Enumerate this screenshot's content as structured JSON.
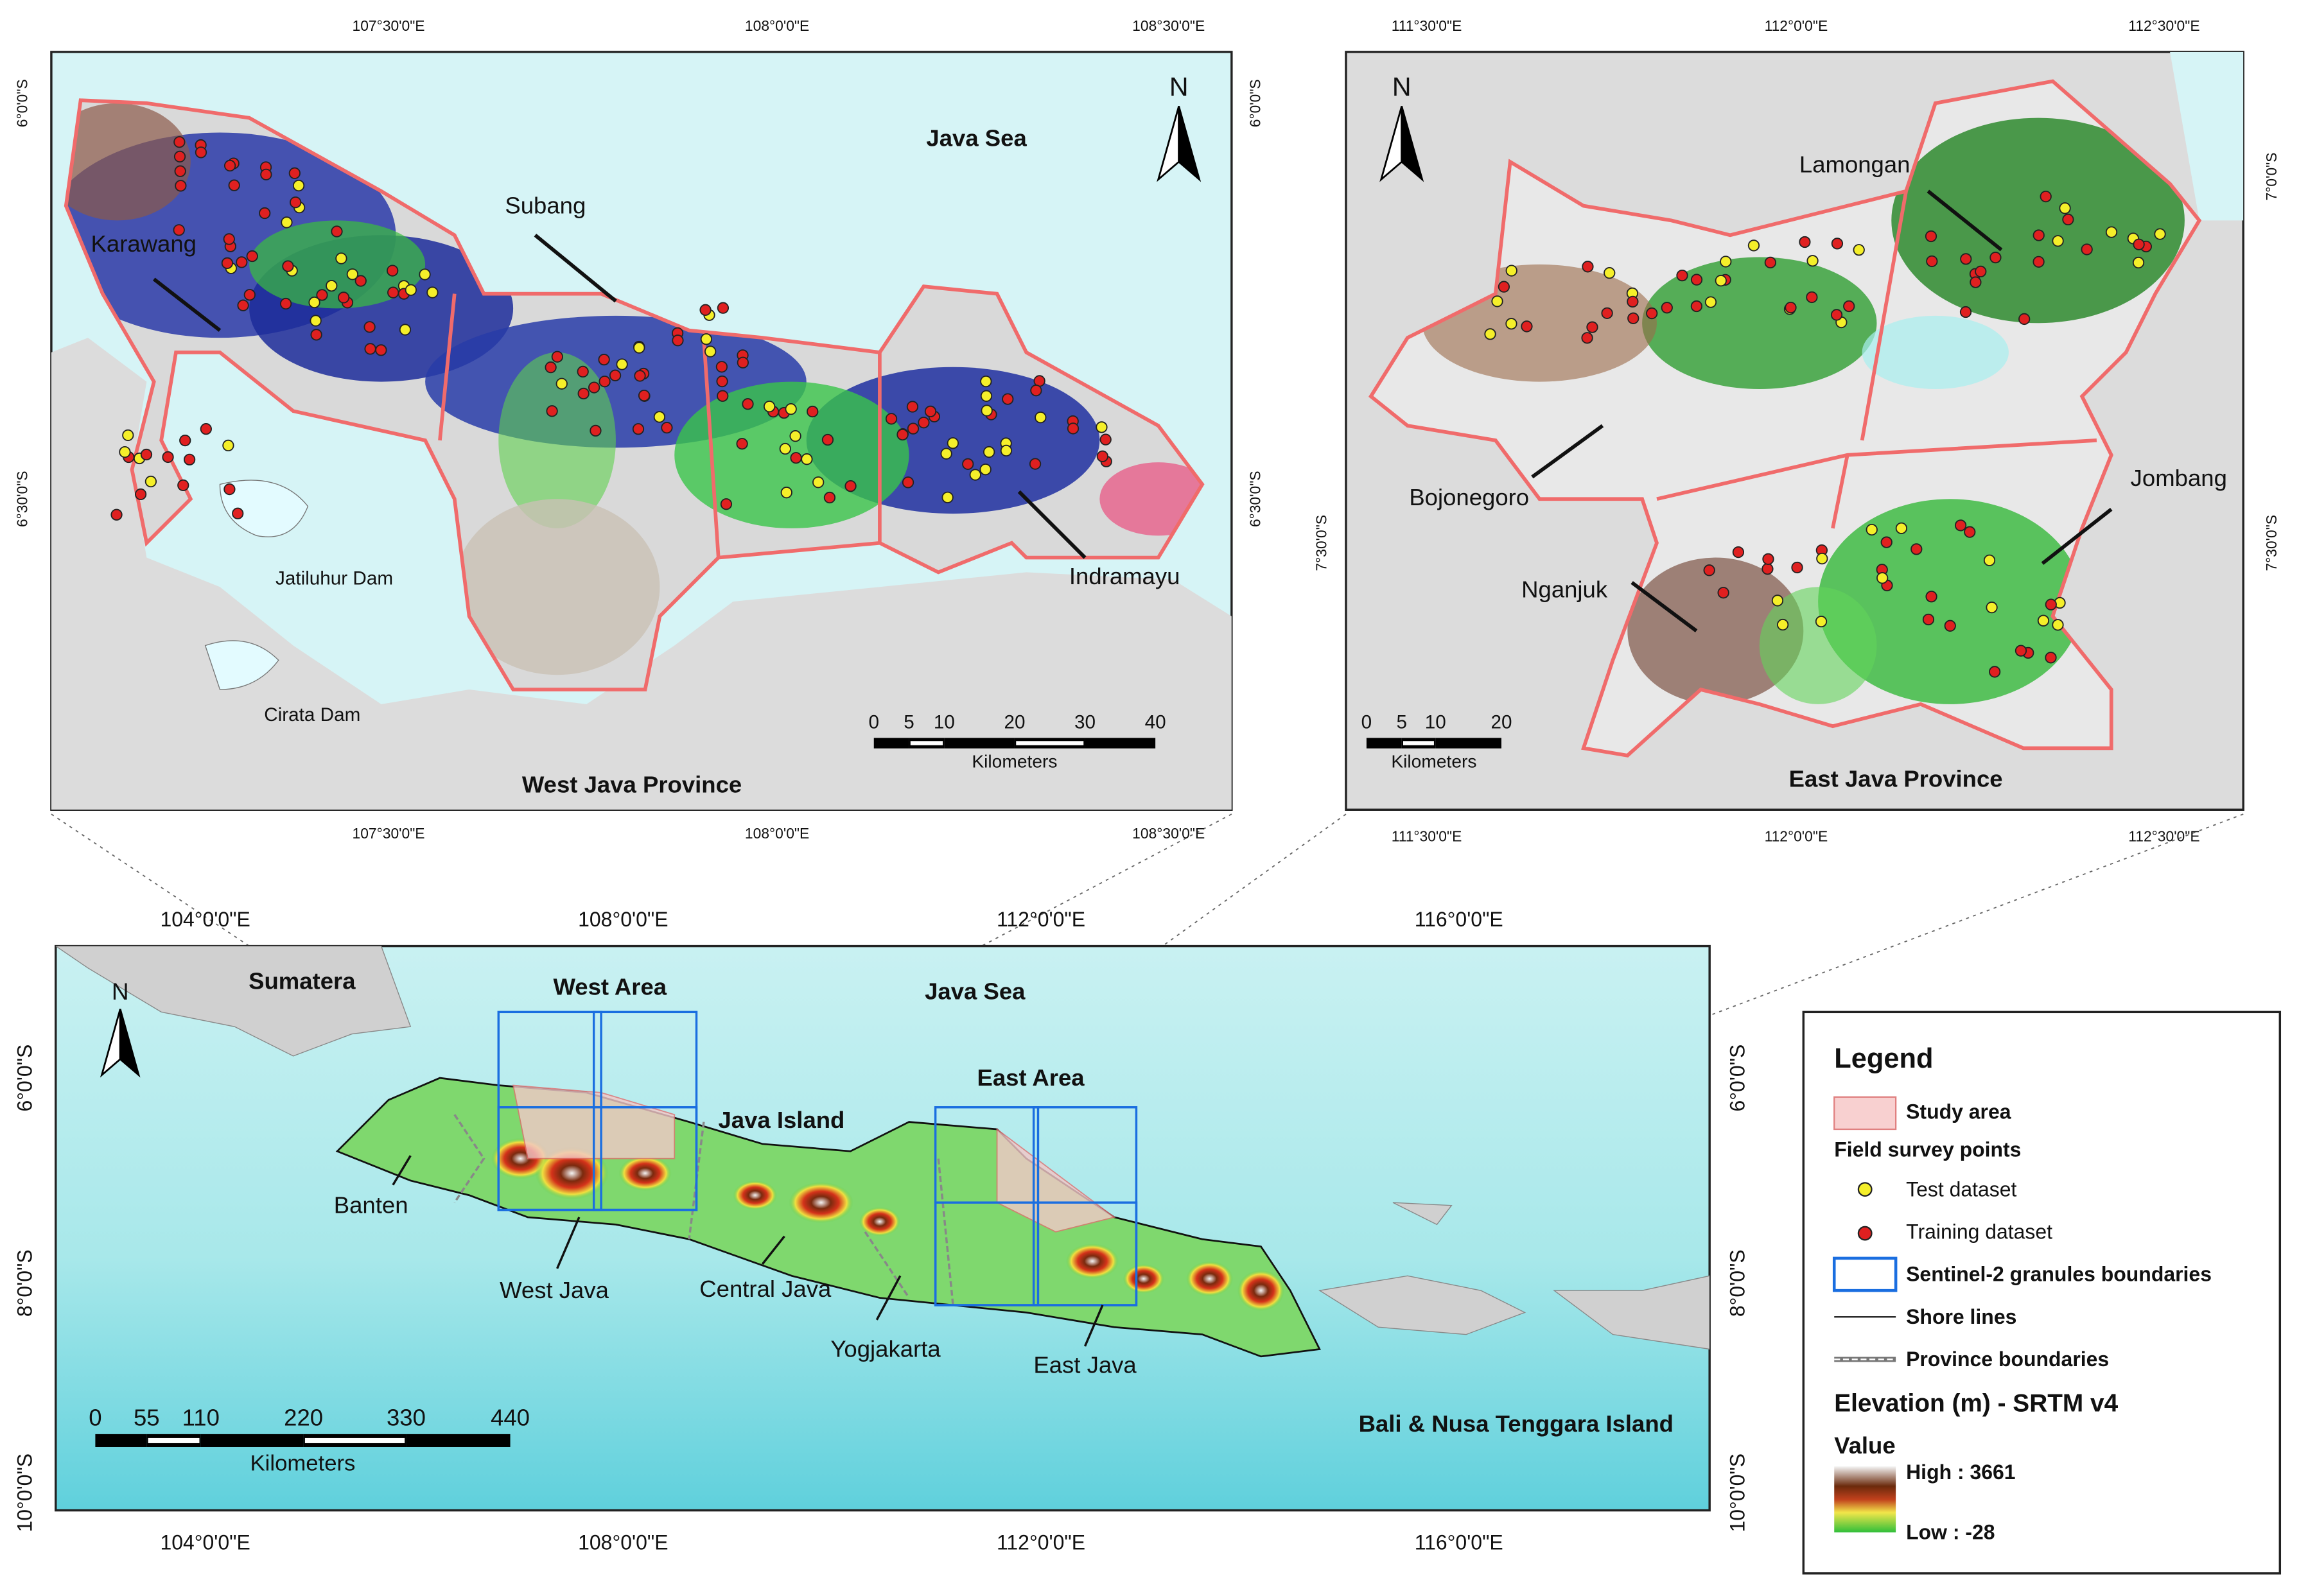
{
  "west_map": {
    "title": "West Java Province",
    "sea": "Java Sea",
    "north": "N",
    "places": [
      "Karawang",
      "Subang",
      "Indramayu",
      "Jatiluhur Dam",
      "Cirata Dam"
    ],
    "top_lon": [
      "107°30'0\"E",
      "108°0'0\"E",
      "108°30'0\"E"
    ],
    "bottom_lon": [
      "107°30'0\"E",
      "108°0'0\"E",
      "108°30'0\"E"
    ],
    "left_lat": [
      "6°0'0\"S",
      "6°30'0\"S"
    ],
    "right_lat": [
      "6°0'0\"S",
      "6°30'0\"S"
    ],
    "scale": {
      "ticks": [
        0,
        5,
        10,
        20,
        30,
        40
      ],
      "unit": "Kilometers"
    }
  },
  "east_map": {
    "title": "East Java Province",
    "north": "N",
    "places": [
      "Lamongan",
      "Bojonegoro",
      "Jombang",
      "Nganjuk"
    ],
    "top_lon": [
      "111°30'0\"E",
      "112°0'0\"E",
      "112°30'0\"E"
    ],
    "bottom_lon": [
      "111°30'0\"E",
      "112°0'0\"E",
      "112°30'0\"E"
    ],
    "left_lat": [
      "7°30'0\"S"
    ],
    "right_lat": [
      "7°0'0\"S",
      "7°30'0\"S"
    ],
    "scale": {
      "ticks": [
        0,
        5,
        10,
        20
      ],
      "unit": "Kilometers"
    }
  },
  "overview_map": {
    "north": "N",
    "labels": [
      "Sumatera",
      "West Area",
      "Java Sea",
      "Java Island",
      "East Area",
      "Banten",
      "West Java",
      "Central Java",
      "Yogjakarta",
      "East Java",
      "Bali & Nusa Tenggara Island"
    ],
    "top_lon": [
      "104°0'0\"E",
      "108°0'0\"E",
      "112°0'0\"E",
      "116°0'0\"E"
    ],
    "bottom_lon": [
      "104°0'0\"E",
      "108°0'0\"E",
      "112°0'0\"E",
      "116°0'0\"E"
    ],
    "left_lat": [
      "6°0'0\"S",
      "8°0'0\"S",
      "10°0'0\"S"
    ],
    "right_lat": [
      "6°0'0\"S",
      "8°0'0\"S",
      "10°0'0\"S"
    ],
    "scale": {
      "ticks": [
        0,
        55,
        110,
        220,
        330,
        440
      ],
      "unit": "Kilometers"
    }
  },
  "legend": {
    "title": "Legend",
    "items": [
      "Study area",
      "Field survey points",
      "Test dataset",
      "Training dataset",
      "Sentinel-2 granules boundaries",
      "Shore lines",
      "Province boundaries"
    ],
    "elevation_title": "Elevation (m) - SRTM v4",
    "value_title": "Value",
    "high": "High : 3661",
    "low": "Low : -28"
  }
}
